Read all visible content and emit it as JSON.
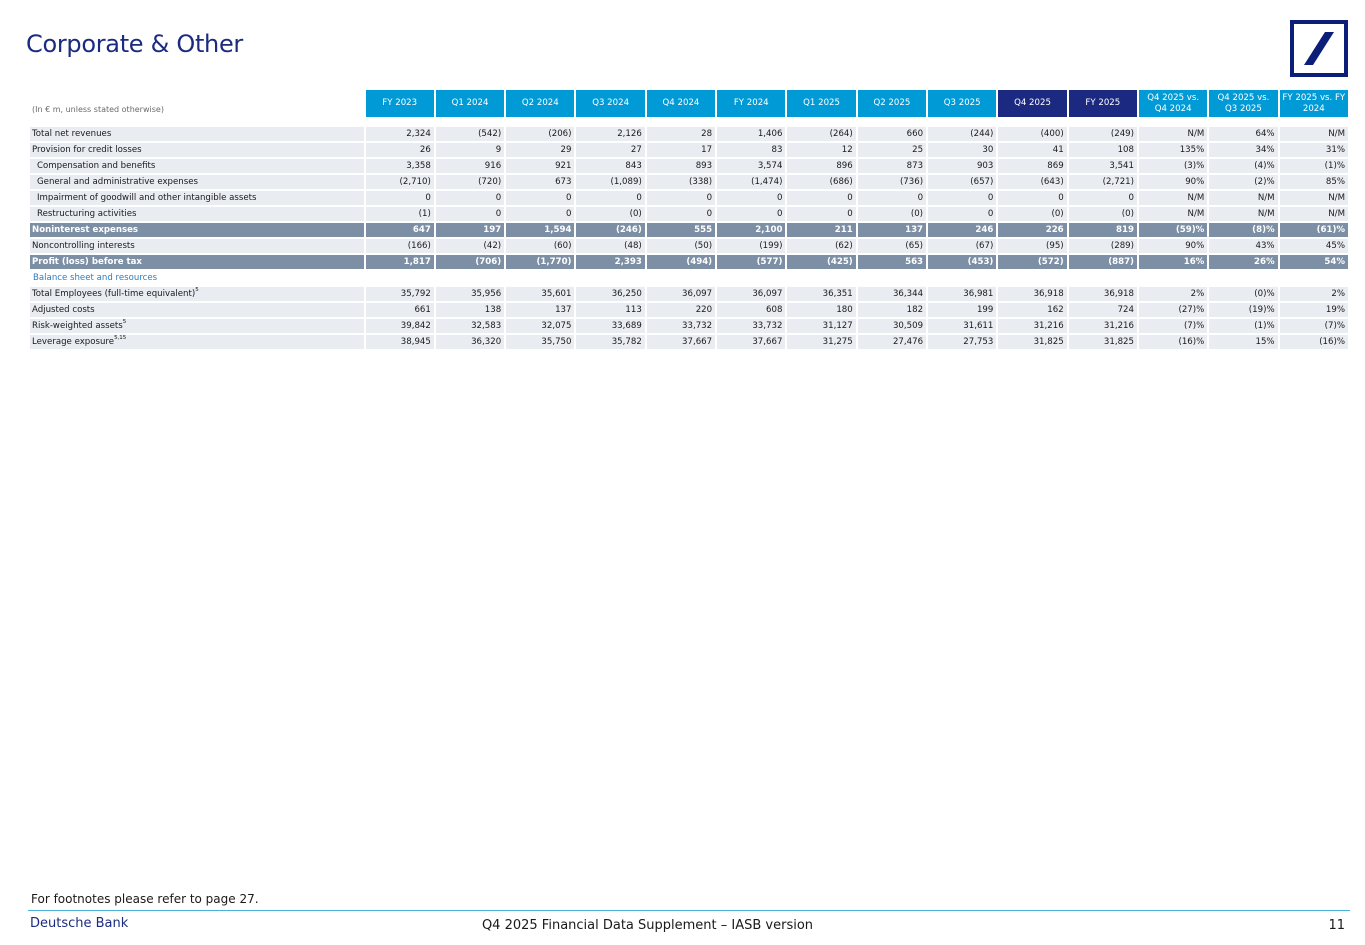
{
  "page": {
    "title": "Corporate & Other",
    "footnote": "For footnotes please refer to page 27.",
    "brand": "Deutsche Bank",
    "footer_title": "Q4 2025 Financial Data Supplement – IASB version",
    "page_number": "11"
  },
  "colors": {
    "header_blue": "#009ad6",
    "header_dark": "#1b2a80",
    "row_bg": "#e9ecf0",
    "bold_row_bg": "#7d8fa5",
    "title": "#1b2c80"
  },
  "table": {
    "unit_note": "(In € m, unless stated otherwise)",
    "columns": [
      "FY 2023",
      "Q1 2024",
      "Q2 2024",
      "Q3 2024",
      "Q4 2024",
      "FY 2024",
      "Q1 2025",
      "Q2 2025",
      "Q3 2025",
      "Q4 2025",
      "FY 2025",
      "Q4 2025 vs. Q4 2024",
      "Q4 2025 vs. Q3 2025",
      "FY 2025 vs. FY 2024"
    ],
    "rows": [
      {
        "label": "Total net revenues",
        "values": [
          "2,324",
          "(542)",
          "(206)",
          "2,126",
          "28",
          "1,406",
          "(264)",
          "660",
          "(244)",
          "(400)",
          "(249)",
          "N/M",
          "64%",
          "N/M"
        ]
      },
      {
        "label": "Provision for credit losses",
        "values": [
          "26",
          "9",
          "29",
          "27",
          "17",
          "83",
          "12",
          "25",
          "30",
          "41",
          "108",
          "135%",
          "34%",
          "31%"
        ]
      },
      {
        "label": "Compensation and benefits",
        "values": [
          "3,358",
          "916",
          "921",
          "843",
          "893",
          "3,574",
          "896",
          "873",
          "903",
          "869",
          "3,541",
          "(3)%",
          "(4)%",
          "(1)%"
        ]
      },
      {
        "label": "General and administrative expenses",
        "values": [
          "(2,710)",
          "(720)",
          "673",
          "(1,089)",
          "(338)",
          "(1,474)",
          "(686)",
          "(736)",
          "(657)",
          "(643)",
          "(2,721)",
          "90%",
          "(2)%",
          "85%"
        ]
      },
      {
        "label": "Impairment of goodwill and other intangible assets",
        "values": [
          "0",
          "0",
          "0",
          "0",
          "0",
          "0",
          "0",
          "0",
          "0",
          "0",
          "0",
          "N/M",
          "N/M",
          "N/M"
        ]
      },
      {
        "label": "Restructuring activities",
        "values": [
          "(1)",
          "0",
          "0",
          "(0)",
          "0",
          "0",
          "0",
          "(0)",
          "0",
          "(0)",
          "(0)",
          "N/M",
          "N/M",
          "N/M"
        ]
      },
      {
        "label": "Noninterest expenses",
        "values": [
          "647",
          "197",
          "1,594",
          "(246)",
          "555",
          "2,100",
          "211",
          "137",
          "246",
          "226",
          "819",
          "(59)%",
          "(8)%",
          "(61)%"
        ]
      },
      {
        "label": "Noncontrolling interests",
        "values": [
          "(166)",
          "(42)",
          "(60)",
          "(48)",
          "(50)",
          "(199)",
          "(62)",
          "(65)",
          "(67)",
          "(95)",
          "(289)",
          "90%",
          "43%",
          "45%"
        ]
      },
      {
        "label": "Profit (loss) before tax",
        "values": [
          "1,817",
          "(706)",
          "(1,770)",
          "2,393",
          "(494)",
          "(577)",
          "(425)",
          "563",
          "(453)",
          "(572)",
          "(887)",
          "16%",
          "26%",
          "54%"
        ]
      }
    ],
    "section_label": "Balance sheet and resources",
    "section_rows": [
      {
        "label": "Total Employees (full-time equivalent)",
        "sup": "5",
        "values": [
          "35,792",
          "35,956",
          "35,601",
          "36,250",
          "36,097",
          "36,097",
          "36,351",
          "36,344",
          "36,981",
          "36,918",
          "36,918",
          "2%",
          "(0)%",
          "2%"
        ]
      },
      {
        "label": "Adjusted costs",
        "sup": "",
        "values": [
          "661",
          "138",
          "137",
          "113",
          "220",
          "608",
          "180",
          "182",
          "199",
          "162",
          "724",
          "(27)%",
          "(19)%",
          "19%"
        ]
      },
      {
        "label": "Risk-weighted assets",
        "sup": "5",
        "values": [
          "39,842",
          "32,583",
          "32,075",
          "33,689",
          "33,732",
          "33,732",
          "31,127",
          "30,509",
          "31,611",
          "31,216",
          "31,216",
          "(7)%",
          "(1)%",
          "(7)%"
        ]
      },
      {
        "label": "Leverage exposure",
        "sup": "5,15",
        "values": [
          "38,945",
          "36,320",
          "35,750",
          "35,782",
          "37,667",
          "37,667",
          "31,275",
          "27,476",
          "27,753",
          "31,825",
          "31,825",
          "(16)%",
          "15%",
          "(16)%"
        ]
      }
    ]
  }
}
